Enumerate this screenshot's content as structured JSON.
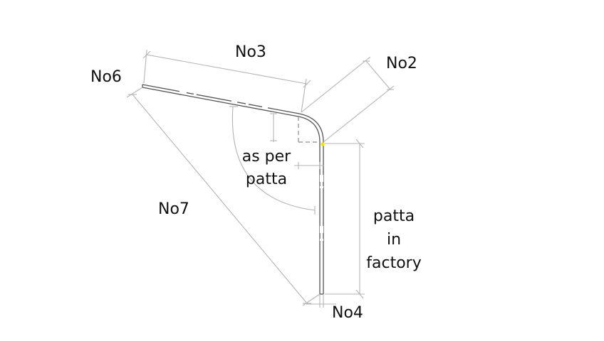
{
  "labels": {
    "no2": "No2",
    "no3": "No3",
    "no4": "No4",
    "no6": "No6",
    "no7": "No7",
    "angle_note_line1": "as per",
    "angle_note_line2": "patta",
    "side_note_line1": "patta",
    "side_note_line2": "in",
    "side_note_line3": "factory"
  },
  "colors": {
    "background": "#ffffff",
    "part_outline": "#555555",
    "dimension_line": "#b4b4b4",
    "dashed_line": "#8c8c8c",
    "text": "#111111",
    "highlight_dot": "#f2e600"
  }
}
